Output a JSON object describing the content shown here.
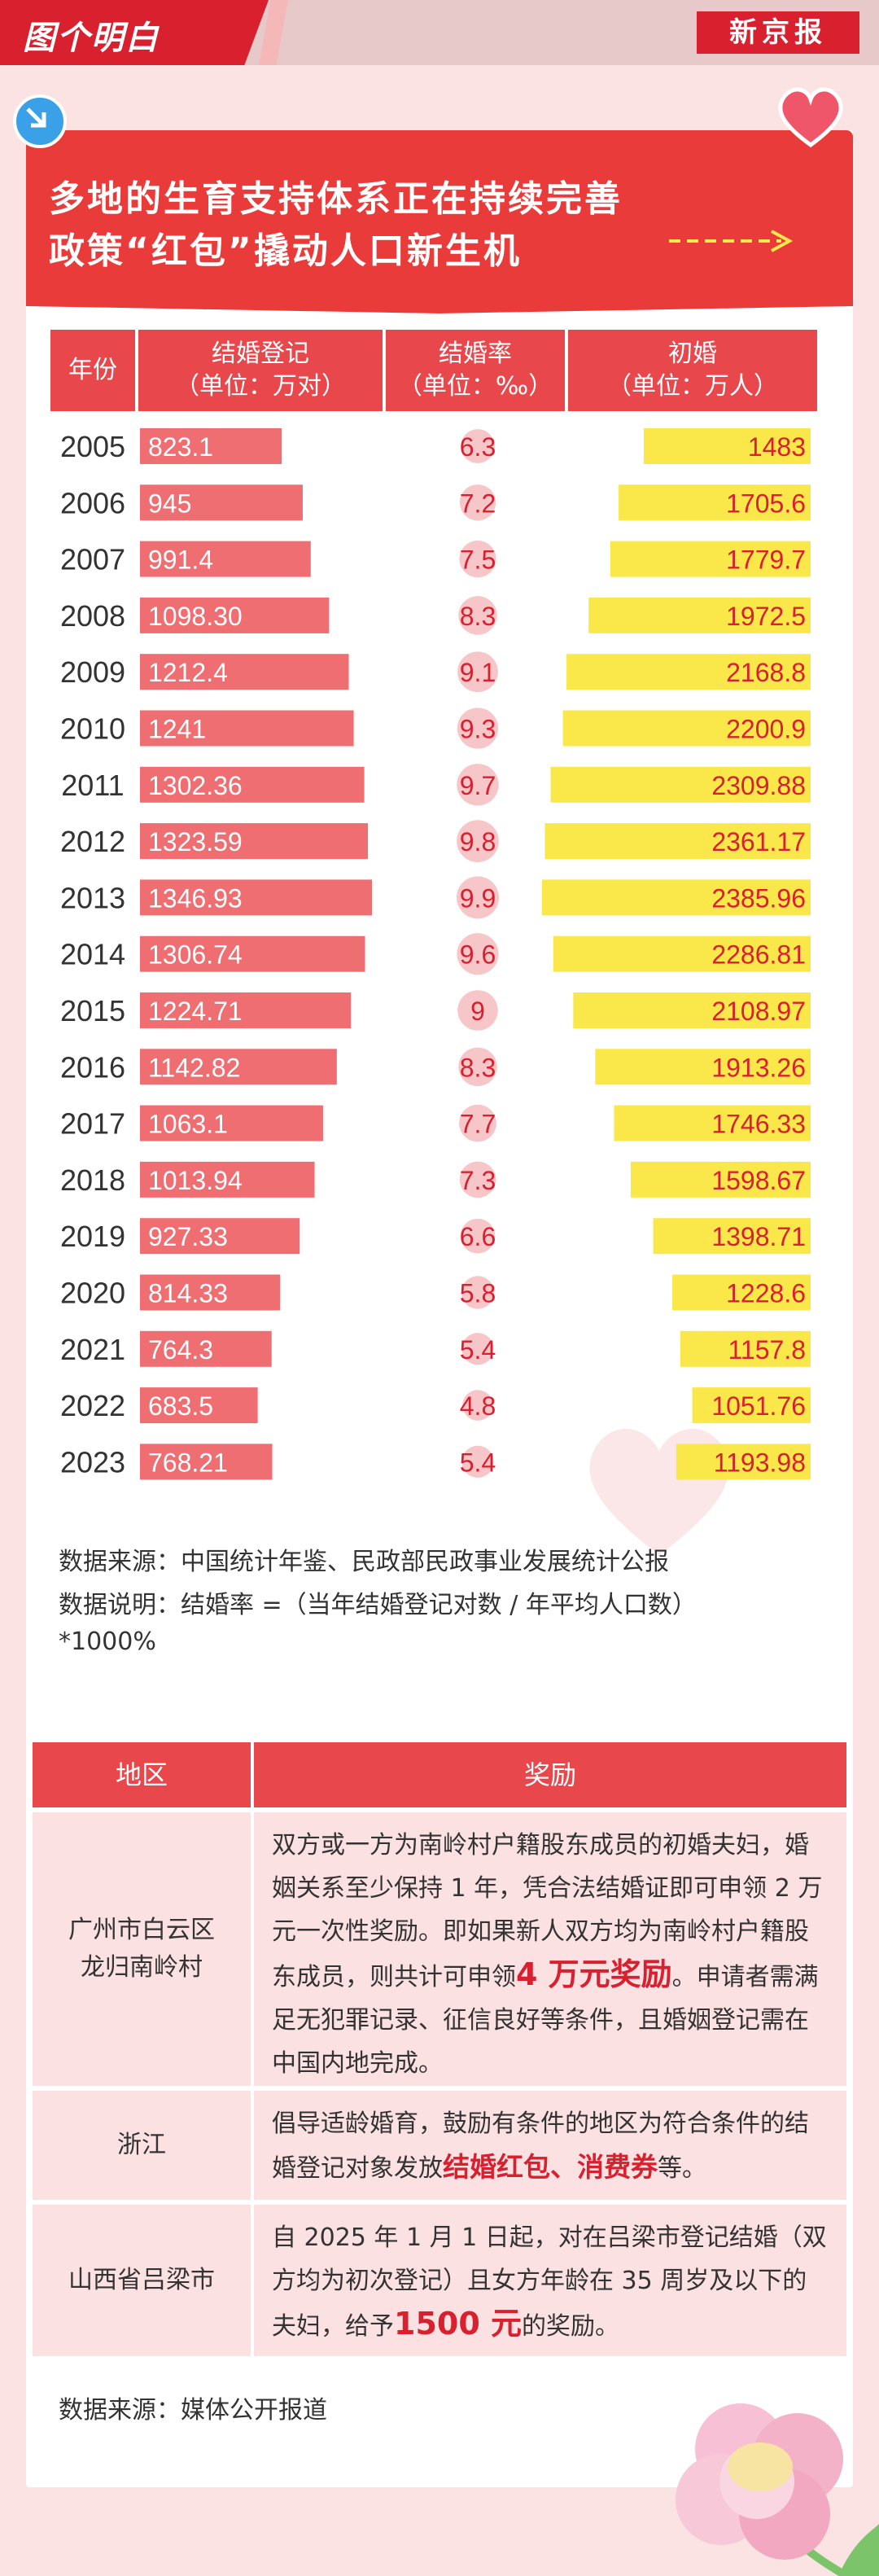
{
  "brand": {
    "left": "图个明白",
    "right": "新京报"
  },
  "title": {
    "line1": "多地的生育支持体系正在持续完善",
    "line2": "政策“红包”撬动人口新生机"
  },
  "colors": {
    "marriage_bar": "#ee6e72",
    "rate_circle": "#f6c6c8",
    "first_marriage_bar": "#fae84a",
    "accent": "#d8202f"
  },
  "table_header": {
    "year": "年份",
    "marriage": {
      "name": "结婚登记",
      "unit": "（单位：万对）"
    },
    "rate": {
      "name": "结婚率",
      "unit": "（单位：‰）"
    },
    "first": {
      "name": "初婚",
      "unit": "（单位：万人）"
    }
  },
  "chart_data": {
    "type": "table",
    "categories": [
      "2005",
      "2006",
      "2007",
      "2008",
      "2009",
      "2010",
      "2011",
      "2012",
      "2013",
      "2014",
      "2015",
      "2016",
      "2017",
      "2018",
      "2019",
      "2020",
      "2021",
      "2022",
      "2023"
    ],
    "series": [
      {
        "name": "结婚登记",
        "labels": [
          "823.1",
          "945",
          "991.4",
          "1098.30",
          "1212.4",
          "1241",
          "1302.36",
          "1323.59",
          "1346.93",
          "1306.74",
          "1224.71",
          "1142.82",
          "1063.1",
          "1013.94",
          "927.33",
          "814.33",
          "764.3",
          "683.5",
          "768.21"
        ],
        "values": [
          823.1,
          945,
          991.4,
          1098.3,
          1212.4,
          1241,
          1302.36,
          1323.59,
          1346.93,
          1306.74,
          1224.71,
          1142.82,
          1063.1,
          1013.94,
          927.33,
          814.33,
          764.3,
          683.5,
          768.21
        ]
      },
      {
        "name": "结婚率",
        "labels": [
          "6.3",
          "7.2",
          "7.5",
          "8.3",
          "9.1",
          "9.3",
          "9.7",
          "9.8",
          "9.9",
          "9.6",
          "9",
          "8.3",
          "7.7",
          "7.3",
          "6.6",
          "5.8",
          "5.4",
          "4.8",
          "5.4"
        ],
        "values": [
          6.3,
          7.2,
          7.5,
          8.3,
          9.1,
          9.3,
          9.7,
          9.8,
          9.9,
          9.6,
          9,
          8.3,
          7.7,
          7.3,
          6.6,
          5.8,
          5.4,
          4.8,
          5.4
        ]
      },
      {
        "name": "初婚",
        "labels": [
          "1483",
          "1705.6",
          "1779.7",
          "1972.5",
          "2168.8",
          "2200.9",
          "2309.88",
          "2361.17",
          "2385.96",
          "2286.81",
          "2108.97",
          "1913.26",
          "1746.33",
          "1598.67",
          "1398.71",
          "1228.6",
          "1157.8",
          "1051.76",
          "1193.98"
        ],
        "values": [
          1483,
          1705.6,
          1779.7,
          1972.5,
          2168.8,
          2200.9,
          2309.88,
          2361.17,
          2385.96,
          2286.81,
          2108.97,
          1913.26,
          1746.33,
          1598.67,
          1398.71,
          1228.6,
          1157.8,
          1051.76,
          1193.98
        ]
      }
    ]
  },
  "notes": {
    "source": "数据来源：中国统计年鉴、民政部民政事业发展统计公报",
    "explain": "数据说明：结婚率 =（当年结婚登记对数 / 年平均人口数）",
    "explain2": "*1000%"
  },
  "reward_table": {
    "head_region": "地区",
    "head_reward": "奖励",
    "rows": [
      {
        "region_line1": "广州市白云区",
        "region_line2": "龙归南岭村",
        "text1": "双方或一方为南岭村户籍股东成员的初婚夫妇，婚姻关系至少保持 1 年，凭合法结婚证即可申领 2 万元一次性奖励。即如果新人双方均为南岭村户籍股东成员，则共计可申领",
        "bold1": "4 万元奖励",
        "text2": "。申请者需满足无犯罪记录、征信良好等条件，且婚姻登记需在中国内地完成。"
      },
      {
        "region_line1": "浙江",
        "text1": "倡导适龄婚育，鼓励有条件的地区为符合条件的结婚登记对象发放",
        "bold1": "结婚红包、消费券",
        "text2": "等。"
      },
      {
        "region_line1": "山西省吕梁市",
        "text1": "自 2025 年 1 月 1 日起，对在吕梁市登记结婚（双方均为初次登记）且女方年龄在 35 周岁及以下的夫妇，给予",
        "bold1": "1500 元",
        "text2": "的奖励。"
      }
    ],
    "source": "数据来源：媒体公开报道"
  }
}
